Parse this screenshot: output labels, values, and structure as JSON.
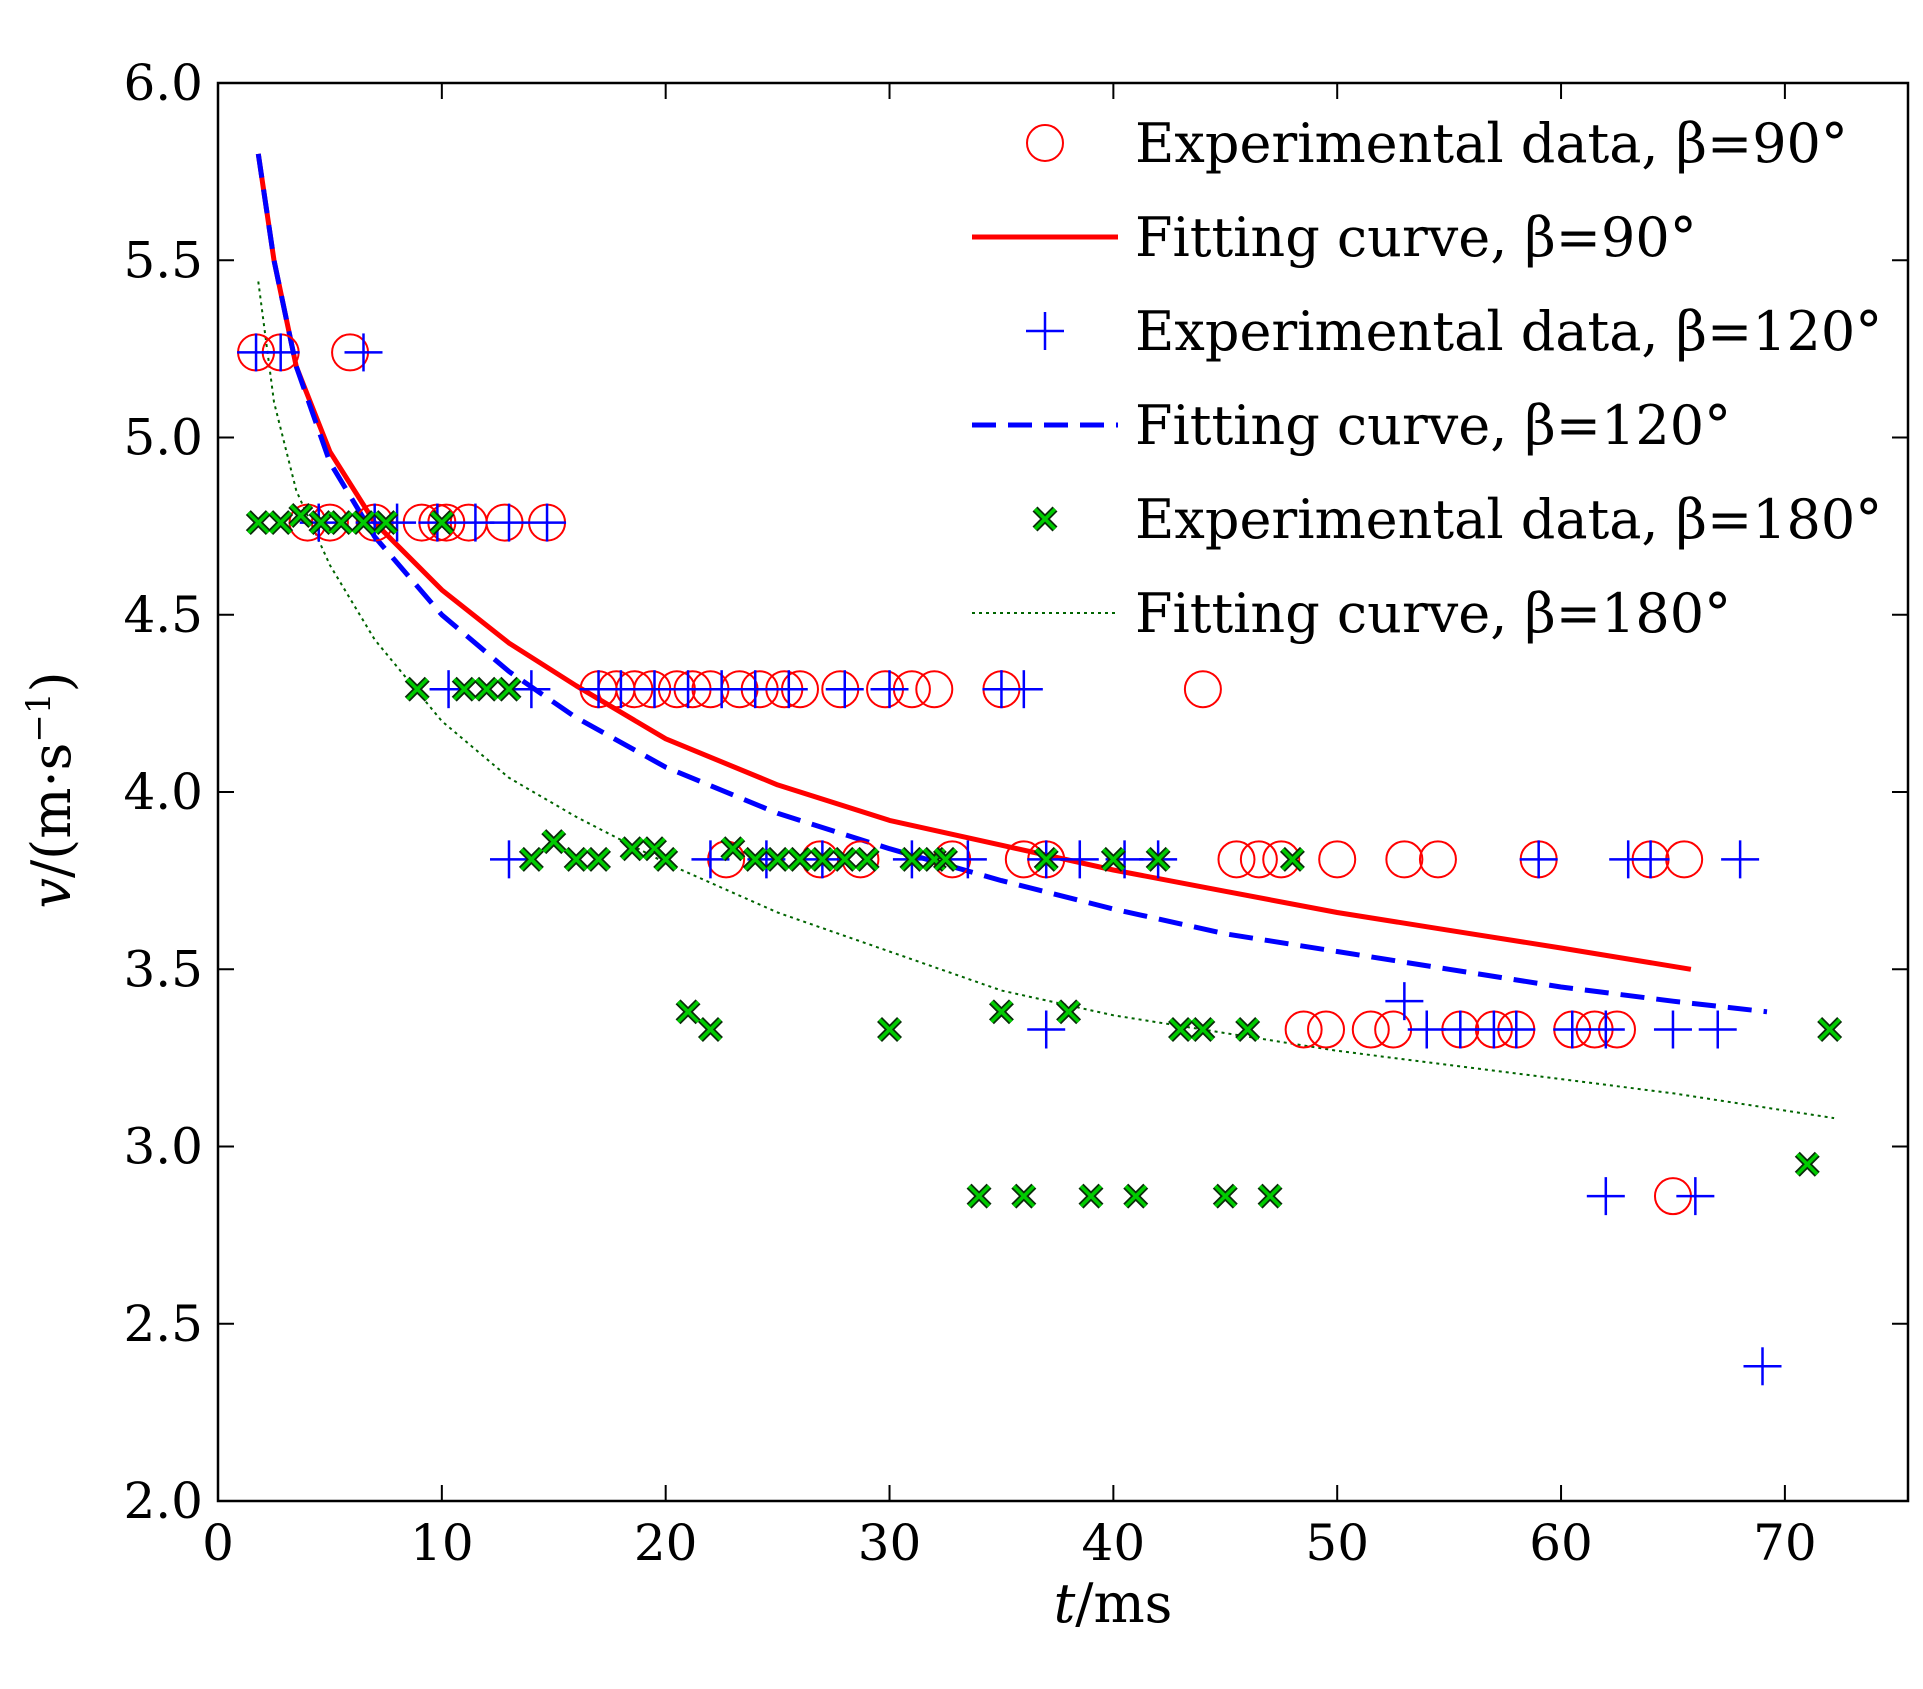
{
  "chart_data": {
    "type": "scatter",
    "xlabel": {
      "var": "t",
      "unit": "/ms"
    },
    "ylabel": {
      "var": "v",
      "unit": "/(m·s",
      "sup": "−1",
      "close": ")"
    },
    "xlim": [
      0,
      75.5
    ],
    "ylim": [
      2.0,
      6.0
    ],
    "xticks": [
      0,
      10,
      20,
      30,
      40,
      50,
      60,
      70
    ],
    "yticks": [
      2.0,
      2.5,
      3.0,
      3.5,
      4.0,
      4.5,
      5.0,
      5.5,
      6.0
    ],
    "xtick_labels": [
      "0",
      "10",
      "20",
      "30",
      "40",
      "50",
      "60",
      "70"
    ],
    "ytick_labels": [
      "2.0",
      "2.5",
      "3.0",
      "3.5",
      "4.0",
      "4.5",
      "5.0",
      "5.5",
      "6.0"
    ],
    "grid": false,
    "legend_position": "top-right",
    "series": [
      {
        "id": "exp90",
        "name": "Experimental data, β=90°",
        "kind": "scatter",
        "marker": "circle",
        "color": "#ff0000",
        "x": [
          1.7,
          2.8,
          5.9,
          4.0,
          5.0,
          7.0,
          9.1,
          9.8,
          10.2,
          11.2,
          12.8,
          14.7,
          17.0,
          17.8,
          18.6,
          19.4,
          20.5,
          21.2,
          22.0,
          23.3,
          24.2,
          25.3,
          26.0,
          27.8,
          29.8,
          31.0,
          32.0,
          35.0,
          44.0,
          22.7,
          26.9,
          28.7,
          32.8,
          36.0,
          37.0,
          45.5,
          46.5,
          47.5,
          50.0,
          53.0,
          54.5,
          59.0,
          64.0,
          65.5,
          48.5,
          49.5,
          51.5,
          52.5,
          55.5,
          57.0,
          58.0,
          60.5,
          61.5,
          62.5,
          65.0
        ],
        "y": [
          5.24,
          5.24,
          5.24,
          4.76,
          4.76,
          4.76,
          4.76,
          4.76,
          4.76,
          4.76,
          4.76,
          4.76,
          4.29,
          4.29,
          4.29,
          4.29,
          4.29,
          4.29,
          4.29,
          4.29,
          4.29,
          4.29,
          4.29,
          4.29,
          4.29,
          4.29,
          4.29,
          4.29,
          4.29,
          3.81,
          3.81,
          3.81,
          3.81,
          3.81,
          3.81,
          3.81,
          3.81,
          3.81,
          3.81,
          3.81,
          3.81,
          3.81,
          3.81,
          3.81,
          3.33,
          3.33,
          3.33,
          3.33,
          3.33,
          3.33,
          3.33,
          3.33,
          3.33,
          3.33,
          2.86
        ]
      },
      {
        "id": "fit90",
        "name": "Fitting curve, β=90°",
        "kind": "line",
        "dash": "solid",
        "color": "#ff0000",
        "x": [
          1.8,
          2.5,
          3.5,
          5,
          7,
          10,
          13,
          16,
          20,
          25,
          30,
          35,
          40,
          45,
          50,
          55,
          60,
          65.8
        ],
        "y": [
          5.8,
          5.5,
          5.2,
          4.96,
          4.76,
          4.57,
          4.42,
          4.3,
          4.15,
          4.02,
          3.92,
          3.85,
          3.78,
          3.72,
          3.66,
          3.61,
          3.56,
          3.5
        ]
      },
      {
        "id": "exp120",
        "name": "Experimental data, β=120°",
        "kind": "scatter",
        "marker": "plus",
        "color": "#0000ff",
        "x": [
          1.7,
          2.8,
          6.5,
          4.5,
          7.0,
          8.0,
          9.8,
          11.5,
          13.0,
          14.7,
          10.3,
          14.0,
          17.0,
          18.0,
          19.5,
          21.0,
          22.5,
          24.0,
          25.5,
          28.0,
          30.0,
          35.0,
          36.0,
          13.0,
          22.0,
          24.5,
          27.0,
          31.0,
          33.5,
          37.0,
          38.5,
          40.5,
          42.0,
          59.0,
          63.0,
          64.0,
          68.0,
          53.0,
          37.0,
          54.0,
          55.5,
          57.0,
          58.0,
          60.5,
          62.0,
          65.0,
          67.0,
          62.0,
          66.0,
          69.0
        ],
        "y": [
          5.24,
          5.24,
          5.24,
          4.76,
          4.76,
          4.76,
          4.76,
          4.76,
          4.76,
          4.76,
          4.29,
          4.29,
          4.29,
          4.29,
          4.29,
          4.29,
          4.29,
          4.29,
          4.29,
          4.29,
          4.29,
          4.29,
          4.29,
          3.81,
          3.81,
          3.81,
          3.81,
          3.81,
          3.81,
          3.81,
          3.81,
          3.81,
          3.81,
          3.81,
          3.81,
          3.81,
          3.81,
          3.41,
          3.33,
          3.33,
          3.33,
          3.33,
          3.33,
          3.33,
          3.33,
          3.33,
          3.33,
          2.86,
          2.86,
          2.38
        ]
      },
      {
        "id": "fit120",
        "name": "Fitting curve, β=120°",
        "kind": "line",
        "dash": "dashed",
        "color": "#0000ff",
        "x": [
          1.8,
          2.5,
          3.5,
          5,
          7,
          10,
          13,
          16,
          20,
          25,
          30,
          35,
          40,
          45,
          50,
          55,
          60,
          65,
          69.2
        ],
        "y": [
          5.8,
          5.5,
          5.2,
          4.93,
          4.72,
          4.5,
          4.34,
          4.21,
          4.07,
          3.94,
          3.84,
          3.75,
          3.67,
          3.6,
          3.55,
          3.5,
          3.45,
          3.41,
          3.38
        ]
      },
      {
        "id": "exp180",
        "name": "Experimental data, β=180°",
        "kind": "scatter",
        "marker": "x",
        "color": "#00cc00",
        "x": [
          1.8,
          2.8,
          3.7,
          4.6,
          5.5,
          6.5,
          7.5,
          10.0,
          8.9,
          11.0,
          12.0,
          13.0,
          14.0,
          15.0,
          16.0,
          17.0,
          18.5,
          19.5,
          20.0,
          23.0,
          24.0,
          25.0,
          26.0,
          27.0,
          28.0,
          29.0,
          31.0,
          32.0,
          32.5,
          37.0,
          40.0,
          42.0,
          48.0,
          21.0,
          22.0,
          30.0,
          35.0,
          38.0,
          43.0,
          44.0,
          46.0,
          72.0,
          34.0,
          36.0,
          39.0,
          41.0,
          45.0,
          47.0,
          71.0
        ],
        "y": [
          4.76,
          4.76,
          4.78,
          4.76,
          4.76,
          4.76,
          4.76,
          4.76,
          4.29,
          4.29,
          4.29,
          4.29,
          3.81,
          3.86,
          3.81,
          3.81,
          3.84,
          3.84,
          3.81,
          3.84,
          3.81,
          3.81,
          3.81,
          3.81,
          3.81,
          3.81,
          3.81,
          3.81,
          3.81,
          3.81,
          3.81,
          3.81,
          3.81,
          3.38,
          3.33,
          3.33,
          3.38,
          3.38,
          3.33,
          3.33,
          3.33,
          3.33,
          2.86,
          2.86,
          2.86,
          2.86,
          2.86,
          2.86,
          2.95
        ]
      },
      {
        "id": "fit180",
        "name": "Fitting curve, β=180°",
        "kind": "line",
        "dash": "dotted",
        "color": "#006400",
        "x": [
          1.8,
          2.5,
          3.5,
          5,
          7,
          10,
          13,
          16,
          20,
          25,
          30,
          35,
          40,
          45,
          50,
          55,
          60,
          65,
          72.2
        ],
        "y": [
          5.44,
          5.1,
          4.85,
          4.64,
          4.43,
          4.2,
          4.04,
          3.93,
          3.8,
          3.66,
          3.55,
          3.44,
          3.37,
          3.32,
          3.27,
          3.23,
          3.19,
          3.15,
          3.08
        ]
      }
    ]
  }
}
